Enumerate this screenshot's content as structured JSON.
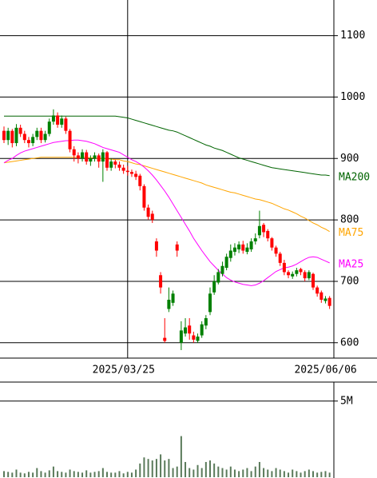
{
  "chart_data": {
    "type": "candlestick",
    "categories": [
      null,
      null,
      null,
      null,
      null,
      null,
      null,
      null,
      null,
      null,
      null,
      null,
      null,
      null,
      null,
      null,
      null,
      null,
      null,
      null,
      null,
      null,
      null,
      null,
      null,
      null,
      null,
      null,
      null,
      null,
      "2025/03/25",
      null,
      null,
      null,
      null,
      null,
      null,
      null,
      null,
      null,
      null,
      null,
      null,
      null,
      null,
      null,
      null,
      null,
      null,
      null,
      null,
      null,
      null,
      null,
      null,
      null,
      null,
      null,
      null,
      null,
      null,
      null,
      null,
      null,
      null,
      null,
      null,
      null,
      null,
      null,
      null,
      null,
      null,
      null,
      null,
      null,
      null,
      null,
      null,
      "2025/06/06"
    ],
    "open": [
      945,
      930,
      945,
      925,
      950,
      940,
      930,
      925,
      935,
      945,
      930,
      940,
      960,
      970,
      955,
      965,
      945,
      915,
      905,
      900,
      910,
      895,
      900,
      905,
      895,
      910,
      885,
      895,
      890,
      885,
      880,
      878,
      875,
      872,
      855,
      820,
      810,
      765,
      710,
      608,
      655,
      665,
      760,
      600,
      615,
      628,
      612,
      603,
      612,
      628,
      650,
      682,
      698,
      712,
      722,
      738,
      748,
      752,
      760,
      748,
      752,
      765,
      775,
      792,
      782,
      770,
      755,
      745,
      730,
      715,
      708,
      712,
      720,
      715,
      705,
      712,
      690,
      682,
      668,
      673
    ],
    "high": [
      952,
      950,
      948,
      956,
      955,
      945,
      935,
      940,
      950,
      950,
      945,
      965,
      980,
      975,
      970,
      968,
      948,
      920,
      910,
      915,
      914,
      905,
      910,
      908,
      915,
      912,
      900,
      898,
      895,
      890,
      888,
      882,
      880,
      875,
      858,
      825,
      815,
      770,
      715,
      640,
      690,
      685,
      765,
      635,
      640,
      640,
      618,
      615,
      635,
      645,
      690,
      710,
      720,
      732,
      745,
      760,
      762,
      765,
      766,
      762,
      770,
      778,
      815,
      795,
      785,
      772,
      758,
      748,
      735,
      718,
      716,
      722,
      722,
      718,
      718,
      714,
      693,
      685,
      676,
      676
    ],
    "low": [
      925,
      922,
      918,
      920,
      935,
      925,
      918,
      920,
      930,
      925,
      926,
      936,
      955,
      950,
      950,
      940,
      910,
      895,
      892,
      895,
      890,
      888,
      895,
      885,
      862,
      880,
      880,
      884,
      880,
      875,
      872,
      870,
      865,
      848,
      815,
      800,
      795,
      740,
      680,
      600,
      650,
      660,
      740,
      588,
      610,
      605,
      600,
      600,
      608,
      622,
      645,
      678,
      695,
      708,
      718,
      732,
      742,
      746,
      745,
      744,
      748,
      760,
      770,
      772,
      765,
      750,
      740,
      725,
      710,
      705,
      704,
      708,
      710,
      700,
      702,
      686,
      675,
      665,
      664,
      655
    ],
    "close": [
      930,
      945,
      925,
      950,
      940,
      930,
      925,
      935,
      945,
      930,
      940,
      960,
      970,
      955,
      965,
      945,
      915,
      905,
      900,
      910,
      895,
      900,
      905,
      895,
      910,
      885,
      895,
      890,
      885,
      880,
      878,
      875,
      870,
      855,
      820,
      805,
      800,
      750,
      690,
      603,
      670,
      680,
      750,
      620,
      625,
      615,
      605,
      610,
      630,
      640,
      680,
      700,
      715,
      725,
      740,
      750,
      755,
      760,
      750,
      755,
      765,
      770,
      790,
      780,
      770,
      755,
      745,
      730,
      715,
      710,
      712,
      718,
      715,
      705,
      715,
      690,
      680,
      670,
      672,
      660
    ],
    "up_color": "#008000",
    "down_color": "#ff0000",
    "ylim": [
      575,
      1158
    ],
    "yticks": [
      600,
      700,
      800,
      900,
      1000,
      1100
    ],
    "grid": true,
    "series": [
      {
        "name": "MA200",
        "color": "#006400",
        "values": [
          969,
          969,
          969,
          969,
          969,
          969,
          969,
          969,
          969,
          969,
          969,
          969,
          969,
          969,
          969,
          969,
          969,
          969,
          969,
          969,
          969,
          969,
          969,
          969,
          969,
          969,
          969,
          969,
          968,
          967,
          966,
          964,
          962,
          960,
          958,
          956,
          954,
          952,
          950,
          948,
          946,
          945,
          943,
          940,
          937,
          934,
          931,
          928,
          925,
          922,
          920,
          917,
          915,
          913,
          910,
          907,
          904,
          901,
          899,
          897,
          895,
          893,
          891,
          889,
          887,
          885,
          884,
          883,
          882,
          881,
          880,
          879,
          878,
          877,
          876,
          875,
          874,
          873,
          873,
          872
        ]
      },
      {
        "name": "MA75",
        "color": "#ffa500",
        "values": [
          893,
          894,
          895,
          896,
          897,
          898,
          899,
          900,
          901,
          902,
          902,
          902,
          902,
          902,
          902,
          902,
          902,
          902,
          902,
          902,
          902,
          901,
          901,
          900,
          900,
          899,
          899,
          898,
          898,
          896,
          895,
          893,
          891,
          890,
          888,
          886,
          884,
          882,
          880,
          878,
          876,
          874,
          872,
          870,
          868,
          866,
          864,
          862,
          860,
          857,
          855,
          853,
          851,
          849,
          847,
          845,
          844,
          842,
          840,
          838,
          836,
          834,
          833,
          831,
          829,
          827,
          824,
          821,
          818,
          816,
          813,
          810,
          806,
          803,
          799,
          795,
          792,
          788,
          785,
          781
        ]
      },
      {
        "name": "MA25",
        "color": "#ff00ff",
        "values": [
          893,
          897,
          900,
          905,
          909,
          912,
          914,
          916,
          918,
          920,
          922,
          924,
          926,
          927,
          928,
          929,
          929,
          930,
          930,
          929,
          928,
          926,
          924,
          921,
          918,
          916,
          914,
          912,
          910,
          906,
          902,
          898,
          895,
          891,
          886,
          880,
          873,
          865,
          856,
          847,
          837,
          826,
          815,
          804,
          793,
          782,
          770,
          760,
          750,
          741,
          732,
          725,
          718,
          712,
          706,
          702,
          699,
          697,
          695,
          694,
          693,
          694,
          697,
          701,
          706,
          711,
          716,
          719,
          722,
          723,
          725,
          728,
          732,
          736,
          739,
          740,
          739,
          736,
          733,
          730
        ]
      }
    ],
    "volume": {
      "values": [
        400000,
        350000,
        300000,
        500000,
        300000,
        250000,
        350000,
        300000,
        600000,
        400000,
        300000,
        450000,
        700000,
        400000,
        350000,
        300000,
        500000,
        400000,
        350000,
        300000,
        450000,
        300000,
        350000,
        400000,
        600000,
        350000,
        300000,
        300000,
        400000,
        250000,
        350000,
        300000,
        500000,
        900000,
        1300000,
        1200000,
        1100000,
        1200000,
        1500000,
        1100000,
        1200000,
        600000,
        700000,
        2700000,
        1000000,
        600000,
        500000,
        800000,
        600000,
        1000000,
        1100000,
        900000,
        700000,
        600000,
        500000,
        700000,
        500000,
        400000,
        500000,
        600000,
        400000,
        700000,
        1000000,
        600000,
        500000,
        400000,
        600000,
        500000,
        400000,
        300000,
        500000,
        400000,
        300000,
        400000,
        500000,
        400000,
        300000,
        350000,
        400000,
        300000
      ],
      "color": "#5a7a5a",
      "ylim": [
        0,
        6250000
      ],
      "yticks": [
        {
          "value": 5000000,
          "label": "5M"
        }
      ]
    }
  }
}
